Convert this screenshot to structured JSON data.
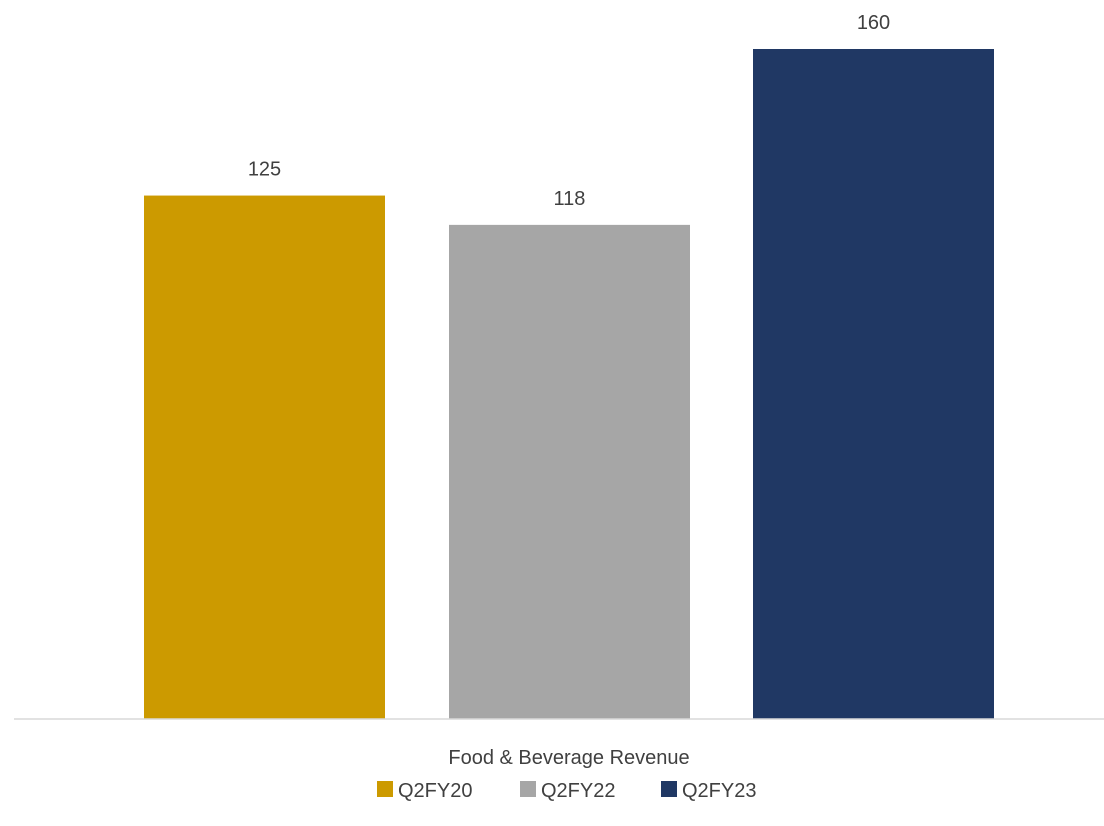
{
  "chart_data": {
    "type": "bar",
    "categories": [
      "Food & Beverage Revenue"
    ],
    "series": [
      {
        "name": "Q2FY20",
        "values": [
          125
        ],
        "color": "#CC9A00"
      },
      {
        "name": "Q2FY22",
        "values": [
          118
        ],
        "color": "#A6A6A6"
      },
      {
        "name": "Q2FY23",
        "values": [
          160
        ],
        "color": "#203864"
      }
    ],
    "title": "",
    "xlabel": "",
    "ylabel": "",
    "ylim": [
      0,
      160
    ],
    "grid": false,
    "legend_position": "bottom"
  }
}
